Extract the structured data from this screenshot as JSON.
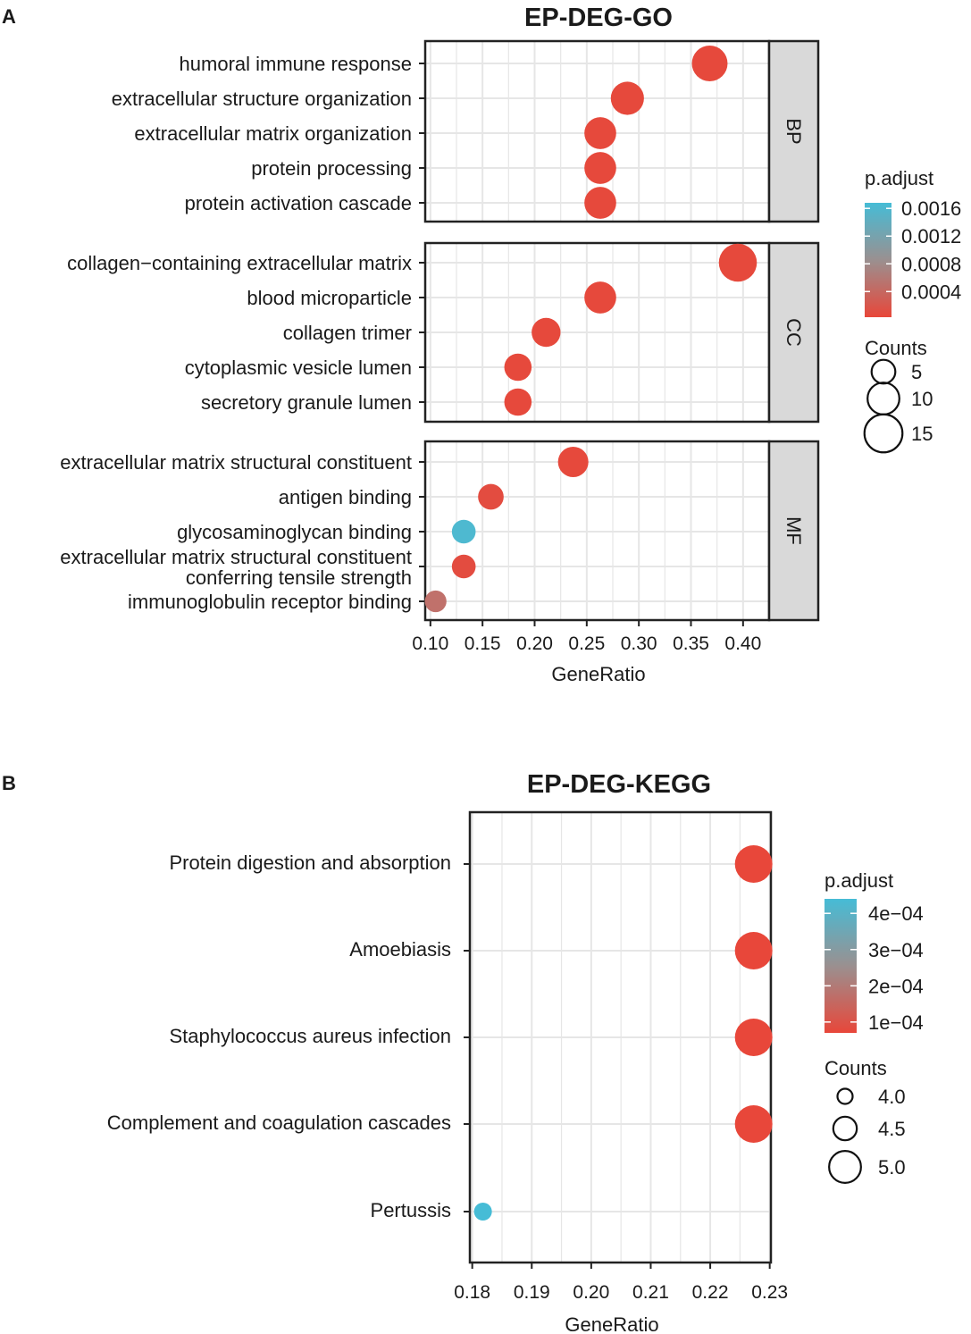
{
  "chart_data": [
    {
      "panel": "A",
      "type": "scatter",
      "title": "EP-DEG-GO",
      "xlabel": "GeneRatio",
      "ylabel": "",
      "xlim": [
        0.095,
        0.425
      ],
      "x_ticks": [
        "0.10",
        "0.15",
        "0.20",
        "0.25",
        "0.30",
        "0.35",
        "0.40"
      ],
      "grid": true,
      "facets": [
        {
          "name": "BP",
          "terms": [
            {
              "label": [
                "humoral immune response"
              ],
              "x": 0.368,
              "count": 13,
              "p_adjust": 5e-05
            },
            {
              "label": [
                "extracellular structure organization"
              ],
              "x": 0.289,
              "count": 11,
              "p_adjust": 5e-05
            },
            {
              "label": [
                "extracellular matrix organization"
              ],
              "x": 0.263,
              "count": 10,
              "p_adjust": 5e-05
            },
            {
              "label": [
                "protein processing"
              ],
              "x": 0.263,
              "count": 10,
              "p_adjust": 5e-05
            },
            {
              "label": [
                "protein activation cascade"
              ],
              "x": 0.263,
              "count": 10,
              "p_adjust": 5e-05
            }
          ]
        },
        {
          "name": "CC",
          "terms": [
            {
              "label": [
                "collagen−containing extracellular matrix"
              ],
              "x": 0.395,
              "count": 15,
              "p_adjust": 5e-05
            },
            {
              "label": [
                "blood microparticle"
              ],
              "x": 0.263,
              "count": 10,
              "p_adjust": 5e-05
            },
            {
              "label": [
                "collagen trimer"
              ],
              "x": 0.211,
              "count": 8,
              "p_adjust": 5e-05
            },
            {
              "label": [
                "cytoplasmic vesicle lumen"
              ],
              "x": 0.184,
              "count": 7,
              "p_adjust": 5e-05
            },
            {
              "label": [
                "secretory granule lumen"
              ],
              "x": 0.184,
              "count": 7,
              "p_adjust": 5e-05
            }
          ]
        },
        {
          "name": "MF",
          "terms": [
            {
              "label": [
                "extracellular matrix structural constituent"
              ],
              "x": 0.237,
              "count": 9,
              "p_adjust": 5e-05
            },
            {
              "label": [
                "antigen binding"
              ],
              "x": 0.158,
              "count": 6,
              "p_adjust": 8e-05
            },
            {
              "label": [
                "glycosaminoglycan binding"
              ],
              "x": 0.132,
              "count": 5,
              "p_adjust": 0.0016
            },
            {
              "label": [
                "extracellular matrix structural constituent",
                "conferring tensile strength"
              ],
              "x": 0.132,
              "count": 5,
              "p_adjust": 8e-05
            },
            {
              "label": [
                "immunoglobulin receptor binding"
              ],
              "x": 0.105,
              "count": 4,
              "p_adjust": 0.00045
            }
          ]
        }
      ],
      "color_legend": {
        "title": "p.adjust",
        "ticks": [
          "0.0016",
          "0.0012",
          "0.0008",
          "0.0004"
        ],
        "tick_values": [
          0.0016,
          0.0012,
          0.0008,
          0.0004
        ],
        "range": [
          3e-05,
          0.00168
        ]
      },
      "size_legend": {
        "title": "Counts",
        "labels": [
          "5",
          "10",
          "15"
        ],
        "values": [
          5,
          10,
          15
        ]
      }
    },
    {
      "panel": "B",
      "type": "scatter",
      "title": "EP-DEG-KEGG",
      "xlabel": "GeneRatio",
      "ylabel": "",
      "xlim": [
        0.1796,
        0.2302
      ],
      "x_ticks": [
        "0.18",
        "0.19",
        "0.20",
        "0.21",
        "0.22",
        "0.23"
      ],
      "grid": true,
      "terms": [
        {
          "label": "Protein digestion and absorption",
          "x": 0.2273,
          "count": 5,
          "p_adjust": 7e-05
        },
        {
          "label": "Amoebiasis",
          "x": 0.2273,
          "count": 5,
          "p_adjust": 7e-05
        },
        {
          "label": "Staphylococcus aureus infection",
          "x": 0.2273,
          "count": 5,
          "p_adjust": 7e-05
        },
        {
          "label": "Complement and coagulation cascades",
          "x": 0.2273,
          "count": 5,
          "p_adjust": 7e-05
        },
        {
          "label": "Pertussis",
          "x": 0.1818,
          "count": 4,
          "p_adjust": 0.00044
        }
      ],
      "color_legend": {
        "title": "p.adjust",
        "ticks": [
          "4e−04",
          "3e−04",
          "2e−04",
          "1e−04"
        ],
        "tick_values": [
          0.0004,
          0.0003,
          0.0002,
          0.0001
        ],
        "range": [
          7e-05,
          0.00044
        ]
      },
      "size_legend": {
        "title": "Counts",
        "labels": [
          "4.0",
          "4.5",
          "5.0"
        ],
        "values": [
          4.0,
          4.5,
          5.0
        ]
      }
    }
  ],
  "colors": {
    "low": "#e8473a",
    "high": "#46bcd6",
    "mid": "#9a9a9a",
    "grid": "#e6e6e6",
    "strip": "#d9d9d9"
  }
}
